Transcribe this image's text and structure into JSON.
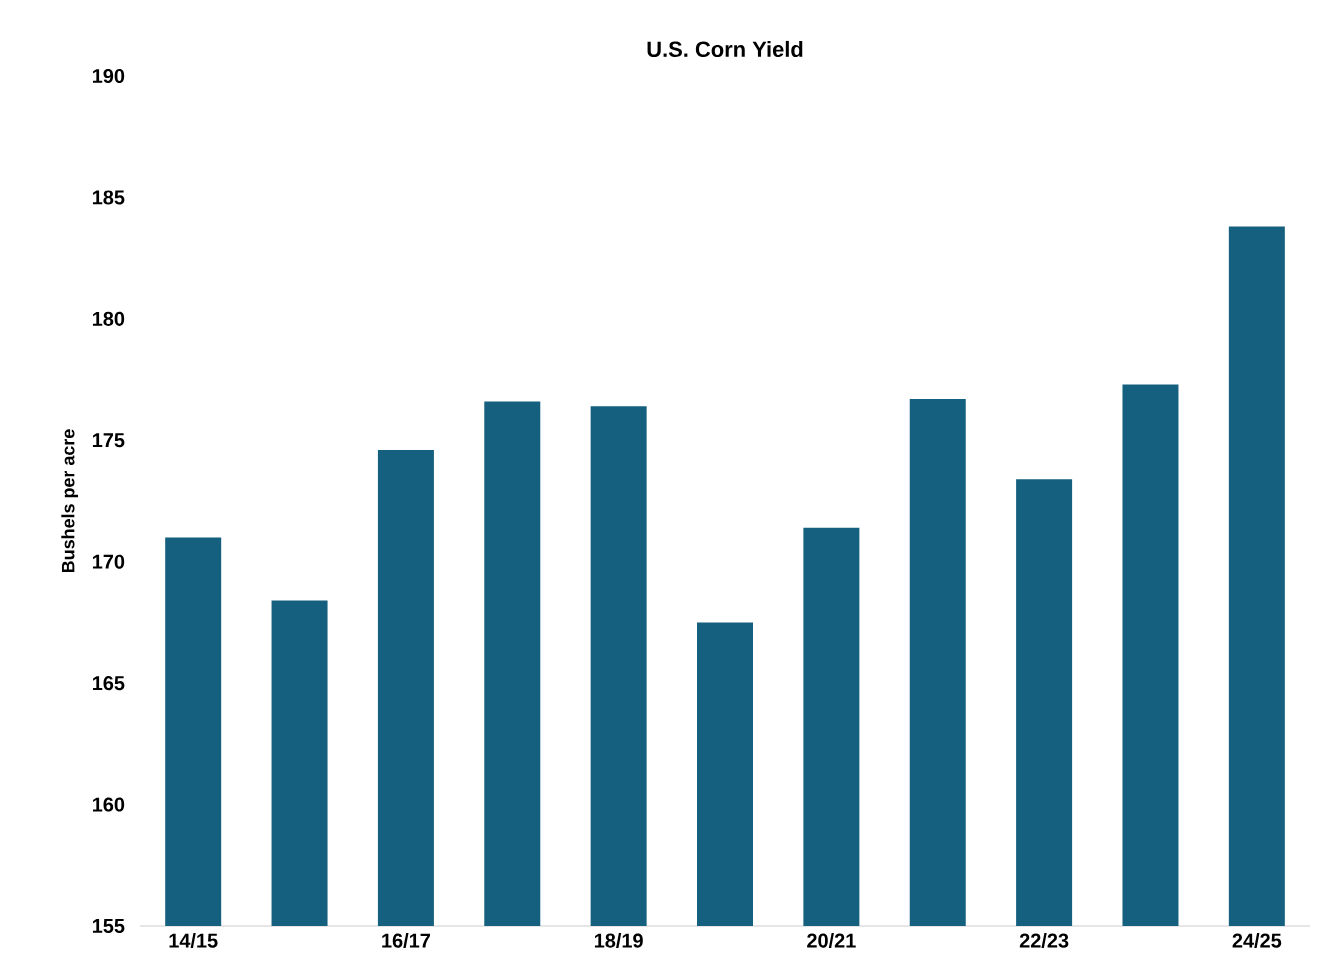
{
  "chart_data": {
    "type": "bar",
    "title": "U.S. Corn Yield",
    "ylabel": "Bushels per acre",
    "categories": [
      "14/15",
      null,
      "16/17",
      null,
      "18/19",
      null,
      "20/21",
      null,
      "22/23",
      null,
      "24/25"
    ],
    "values": [
      171.0,
      168.4,
      174.6,
      176.6,
      176.4,
      167.5,
      171.4,
      176.7,
      173.4,
      177.3,
      183.8
    ],
    "color": "#15607e",
    "ylim": [
      155,
      190
    ],
    "yticks": [
      155,
      160,
      165,
      170,
      175,
      180,
      185,
      190
    ],
    "grid": false
  }
}
